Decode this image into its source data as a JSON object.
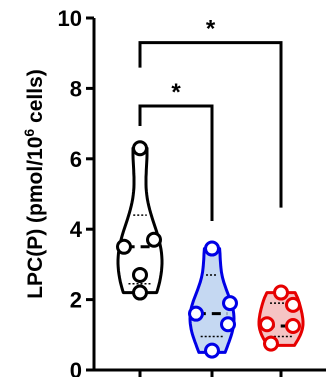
{
  "chart_data": {
    "type": "violin",
    "title": "",
    "ylabel_main": "LPC(P) (pmol/10",
    "ylabel_sup": "6",
    "ylabel_tail": " cells)",
    "xlabel": "",
    "ylim": [
      0,
      10
    ],
    "yticks": [
      "0",
      "2",
      "4",
      "6",
      "8",
      "10"
    ],
    "groups": [
      {
        "name": "",
        "fill": "#ffffff",
        "stroke": "#000000",
        "points": [
          6.3,
          3.7,
          3.5,
          2.7,
          2.2
        ],
        "median": 3.5,
        "quartiles": [
          2.45,
          4.4
        ],
        "range": [
          2.2,
          6.3
        ]
      },
      {
        "name": "",
        "fill": "#c5d8f2",
        "stroke": "#0000e6",
        "points": [
          3.45,
          1.9,
          1.6,
          1.3,
          0.55
        ],
        "median": 1.6,
        "quartiles": [
          0.95,
          2.7
        ],
        "range": [
          0.5,
          3.45
        ]
      },
      {
        "name": "",
        "fill": "#f5c4c4",
        "stroke": "#e60000",
        "points": [
          2.2,
          1.85,
          1.3,
          1.25,
          0.75
        ],
        "median": 1.25,
        "quartiles": [
          0.95,
          1.9
        ],
        "range": [
          0.7,
          2.2
        ]
      }
    ],
    "significance": [
      {
        "from": 0,
        "to": 1,
        "y": 7.5,
        "label": "*"
      },
      {
        "from": 0,
        "to": 2,
        "y": 9.3,
        "label": "*"
      }
    ],
    "grid": false,
    "legend": "none"
  }
}
